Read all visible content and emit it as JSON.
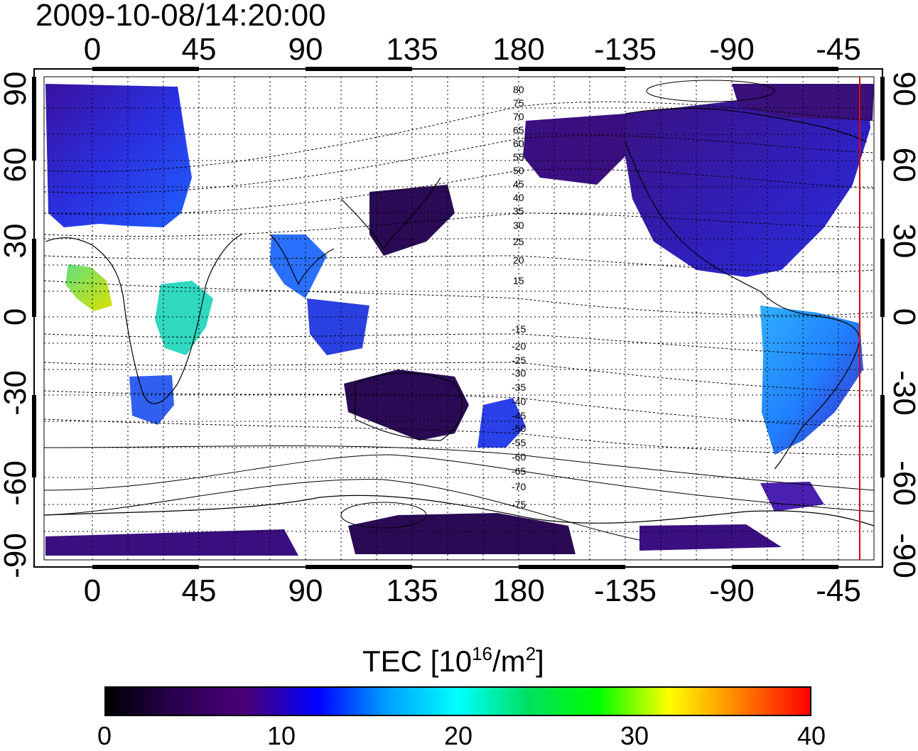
{
  "title": "2009-10-08/14:20:00",
  "map": {
    "lon_ticks": [
      "0",
      "45",
      "90",
      "135",
      "180",
      "-135",
      "-90",
      "-45"
    ],
    "lat_ticks": [
      "90",
      "60",
      "30",
      "0",
      "-30",
      "-60",
      "-90"
    ],
    "contour_labels": [
      "80",
      "75",
      "70",
      "65",
      "60",
      "55",
      "50",
      "45",
      "40",
      "35",
      "30",
      "25",
      "20",
      "15",
      "-15",
      "-20",
      "-25",
      "-30",
      "-35",
      "-40",
      "-45",
      "-50",
      "-55",
      "-60",
      "-65",
      "-70",
      "-75"
    ],
    "red_line_longitude": -37
  },
  "colorbar": {
    "label_text": "TEC  [10",
    "label_exp": "16",
    "label_unit": "/m",
    "label_exp2": "2",
    "label_close": "]",
    "ticks": [
      "0",
      "10",
      "20",
      "30",
      "40"
    ],
    "range": [
      0,
      40
    ],
    "colors": [
      "#000000",
      "#2a0050",
      "#4a007a",
      "#0000ff",
      "#00a0ff",
      "#00ffff",
      "#00e060",
      "#00ff00",
      "#ffff00",
      "#ff8000",
      "#ff0000"
    ]
  }
}
